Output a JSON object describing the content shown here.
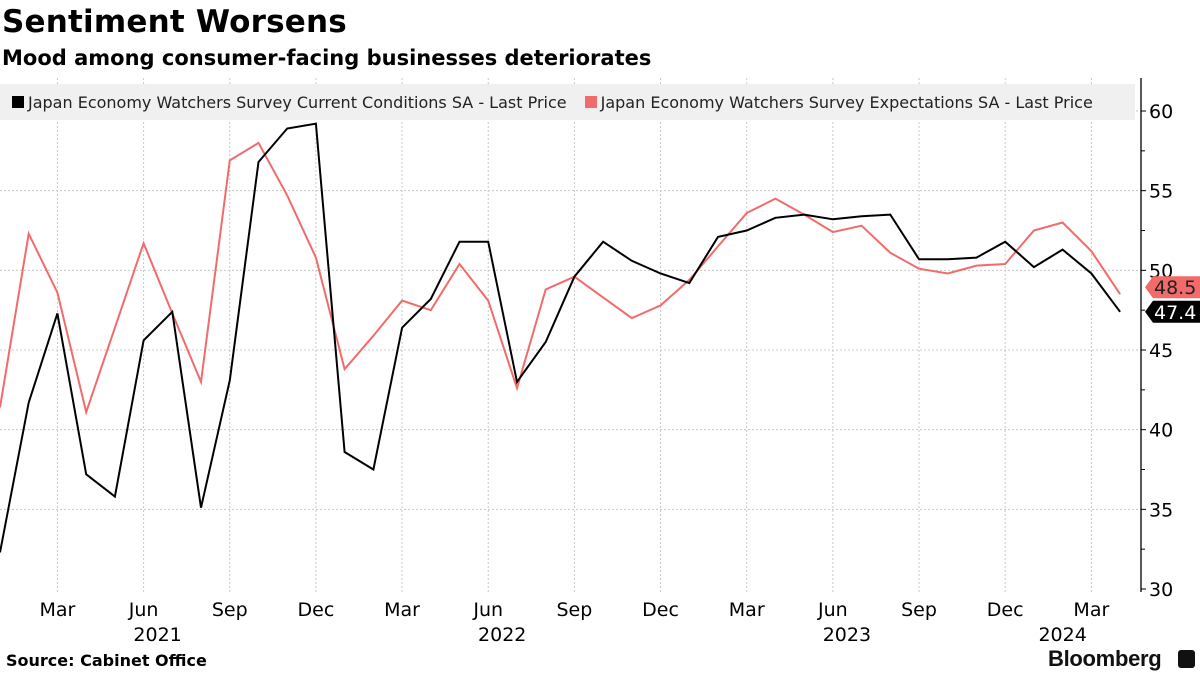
{
  "header": {
    "title": "Sentiment Worsens",
    "subtitle": "Mood among consumer-facing businesses deteriorates"
  },
  "footer": {
    "source": "Source: Cabinet Office",
    "brand": "Bloomberg",
    "brand_icon": "bloomberg-chart-icon"
  },
  "chart_data": {
    "type": "line",
    "title": "Sentiment Worsens",
    "subtitle": "Mood among consumer-facing businesses deteriorates",
    "x": [
      "2021-01",
      "2021-02",
      "2021-03",
      "2021-04",
      "2021-05",
      "2021-06",
      "2021-07",
      "2021-08",
      "2021-09",
      "2021-10",
      "2021-11",
      "2021-12",
      "2022-01",
      "2022-02",
      "2022-03",
      "2022-04",
      "2022-05",
      "2022-06",
      "2022-07",
      "2022-08",
      "2022-09",
      "2022-10",
      "2022-11",
      "2022-12",
      "2023-01",
      "2023-02",
      "2023-03",
      "2023-04",
      "2023-05",
      "2023-06",
      "2023-07",
      "2023-08",
      "2023-09",
      "2023-10",
      "2023-11",
      "2023-12",
      "2024-01",
      "2024-02",
      "2024-03",
      "2024-04"
    ],
    "series": [
      {
        "name": "Japan Economy Watchers Survey Current Conditions SA - Last Price",
        "color": "#000000",
        "last_label": "47.4",
        "values": [
          32.3,
          41.7,
          47.3,
          37.2,
          35.8,
          45.6,
          47.4,
          35.1,
          43.1,
          56.8,
          58.9,
          59.2,
          38.6,
          37.5,
          46.4,
          48.2,
          51.8,
          51.8,
          43.0,
          45.5,
          49.6,
          51.8,
          50.6,
          49.8,
          49.2,
          52.1,
          52.5,
          53.3,
          53.5,
          53.2,
          53.4,
          53.5,
          50.7,
          50.7,
          50.8,
          51.8,
          50.2,
          51.3,
          49.8,
          47.4
        ]
      },
      {
        "name": "Japan Economy Watchers Survey Expectations SA - Last Price",
        "color": "#f26b6b",
        "last_label": "48.5",
        "values": [
          41.4,
          52.3,
          48.6,
          41.1,
          46.4,
          51.7,
          47.3,
          43.0,
          56.9,
          58.0,
          54.7,
          50.8,
          43.8,
          45.9,
          48.1,
          47.5,
          50.4,
          48.1,
          42.6,
          48.8,
          49.6,
          48.3,
          47.0,
          47.8,
          49.4,
          51.5,
          53.6,
          54.5,
          53.5,
          52.4,
          52.8,
          51.1,
          50.1,
          49.8,
          50.3,
          50.4,
          52.5,
          53.0,
          51.2,
          48.5
        ]
      }
    ],
    "ylim": [
      30,
      62
    ],
    "yticks": [
      "30",
      "35",
      "40",
      "45",
      "50",
      "55",
      "60"
    ],
    "ytick_values": [
      30,
      35,
      40,
      45,
      50,
      55,
      60
    ],
    "xtick_labels": [
      {
        "month": "2021-03",
        "label": "Mar"
      },
      {
        "month": "2021-06",
        "label": "Jun"
      },
      {
        "month": "2021-09",
        "label": "Sep"
      },
      {
        "month": "2021-12",
        "label": "Dec"
      },
      {
        "month": "2022-03",
        "label": "Mar"
      },
      {
        "month": "2022-06",
        "label": "Jun"
      },
      {
        "month": "2022-09",
        "label": "Sep"
      },
      {
        "month": "2022-12",
        "label": "Dec"
      },
      {
        "month": "2023-03",
        "label": "Mar"
      },
      {
        "month": "2023-06",
        "label": "Jun"
      },
      {
        "month": "2023-09",
        "label": "Sep"
      },
      {
        "month": "2023-12",
        "label": "Dec"
      },
      {
        "month": "2024-03",
        "label": "Mar"
      }
    ],
    "year_labels": [
      {
        "month": "2021-06",
        "label": "2021"
      },
      {
        "month": "2022-06",
        "label": "2022"
      },
      {
        "month": "2023-06",
        "label": "2023"
      },
      {
        "month": "2024-02",
        "label": "2024"
      }
    ],
    "y_axis_side": "right",
    "grid": true,
    "legend_placement": "top"
  }
}
